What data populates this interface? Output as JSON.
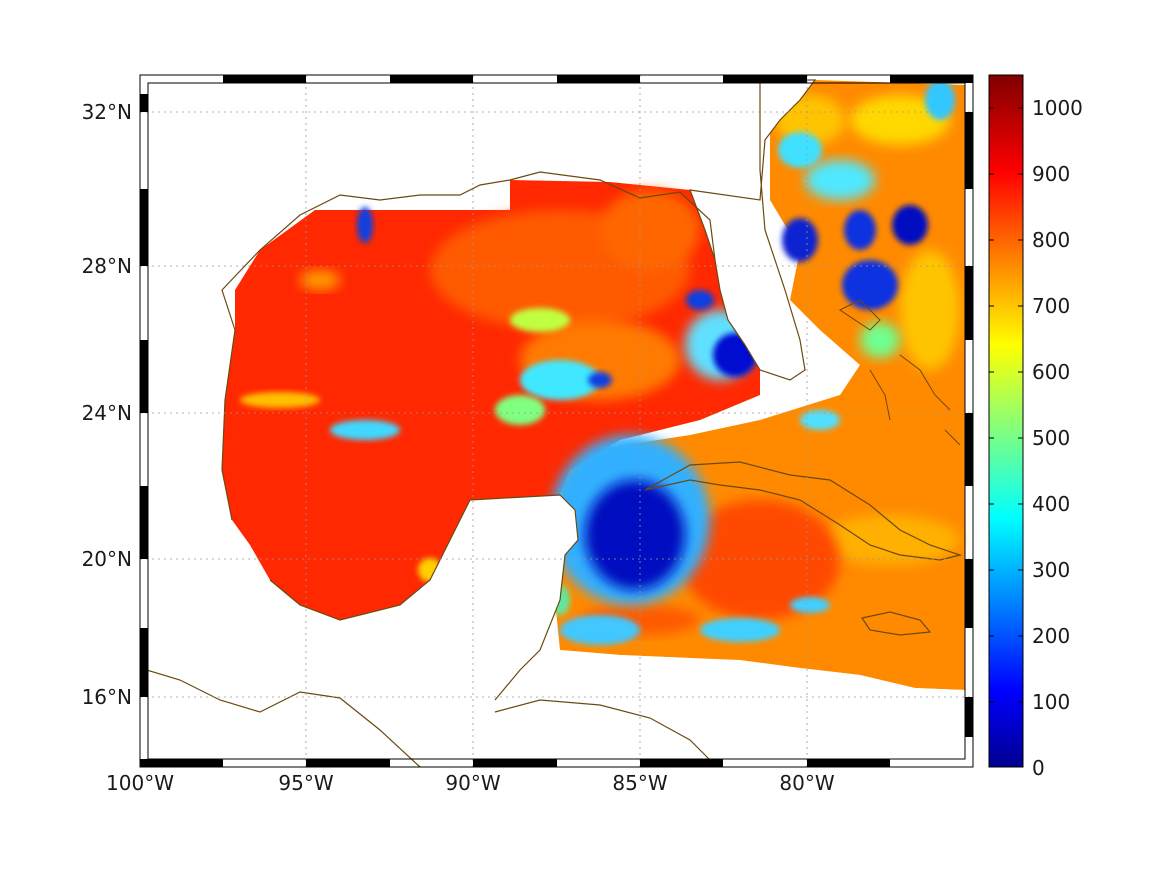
{
  "map": {
    "x_ticks": [
      "100°W",
      "95°W",
      "90°W",
      "85°W",
      "80°W"
    ],
    "y_ticks": [
      "32°N",
      "28°N",
      "24°N",
      "20°N",
      "16°N"
    ],
    "lon_range": [
      -100,
      -75
    ],
    "lat_range": [
      14.3,
      33
    ],
    "coastline_color": "#6b4a12",
    "land_color": "#ffffff",
    "grid": true,
    "frame": "black-white checkered border"
  },
  "colorbar": {
    "ticks": [
      "1000",
      "900",
      "800",
      "700",
      "600",
      "500",
      "400",
      "300",
      "200",
      "100",
      "0"
    ],
    "range": [
      0,
      1050
    ],
    "colormap": "jet"
  }
}
